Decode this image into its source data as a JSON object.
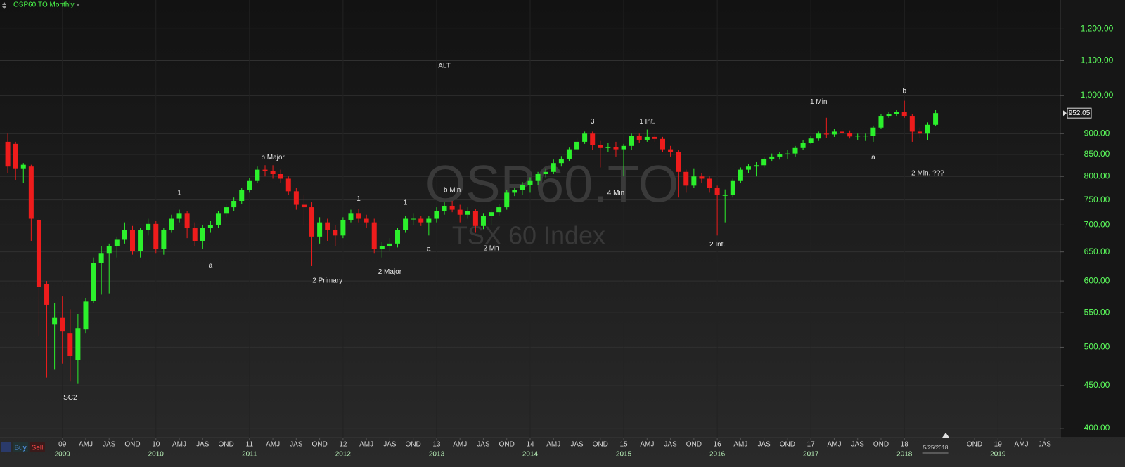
{
  "chart_data": {
    "type": "candlestick",
    "title": "OSP60.TO Monthly",
    "watermark": "OSP60.TO",
    "subtitle": "TSX 60 Index",
    "buttons": [
      "Buy",
      "Sell"
    ],
    "x": [
      "2008-06",
      "2008-07",
      "2008-08",
      "2008-09",
      "2008-10",
      "2008-11",
      "2008-12",
      "2009-01",
      "2009-02",
      "2009-03",
      "2009-04",
      "2009-05",
      "2009-06",
      "2009-07",
      "2009-08",
      "2009-09",
      "2009-10",
      "2009-11",
      "2009-12",
      "2010-01",
      "2010-02",
      "2010-03",
      "2010-04",
      "2010-05",
      "2010-06",
      "2010-07",
      "2010-08",
      "2010-09",
      "2010-10",
      "2010-11",
      "2010-12",
      "2011-01",
      "2011-02",
      "2011-03",
      "2011-04",
      "2011-05",
      "2011-06",
      "2011-07",
      "2011-08",
      "2011-09",
      "2011-10",
      "2011-11",
      "2011-12",
      "2012-01",
      "2012-02",
      "2012-03",
      "2012-04",
      "2012-05",
      "2012-06",
      "2012-07",
      "2012-08",
      "2012-09",
      "2012-10",
      "2012-11",
      "2012-12",
      "2013-01",
      "2013-02",
      "2013-03",
      "2013-04",
      "2013-05",
      "2013-06",
      "2013-07",
      "2013-08",
      "2013-09",
      "2013-10",
      "2013-11",
      "2013-12",
      "2014-01",
      "2014-02",
      "2014-03",
      "2014-04",
      "2014-05",
      "2014-06",
      "2014-07",
      "2014-08",
      "2014-09",
      "2014-10",
      "2014-11",
      "2014-12",
      "2015-01",
      "2015-02",
      "2015-03",
      "2015-04",
      "2015-05",
      "2015-06",
      "2015-07",
      "2015-08",
      "2015-09",
      "2015-10",
      "2015-11",
      "2015-12",
      "2016-01",
      "2016-02",
      "2016-03",
      "2016-04",
      "2016-05",
      "2016-06",
      "2016-07",
      "2016-08",
      "2016-09",
      "2016-10",
      "2016-11",
      "2016-12",
      "2017-01",
      "2017-02",
      "2017-03",
      "2017-04",
      "2017-05",
      "2017-06",
      "2017-07",
      "2017-08",
      "2017-09",
      "2017-10",
      "2017-11",
      "2017-12",
      "2018-01",
      "2018-02",
      "2018-03",
      "2018-04",
      "2018-05"
    ],
    "open": [
      880,
      875,
      818,
      822,
      710,
      595,
      532,
      542,
      520,
      483,
      525,
      568,
      630,
      648,
      660,
      672,
      690,
      652,
      690,
      702,
      655,
      690,
      712,
      722,
      695,
      670,
      695,
      700,
      722,
      735,
      748,
      770,
      790,
      815,
      812,
      805,
      795,
      768,
      740,
      735,
      678,
      705,
      690,
      680,
      710,
      722,
      712,
      705,
      655,
      660,
      665,
      690,
      712,
      712,
      705,
      712,
      728,
      738,
      730,
      720,
      728,
      698,
      718,
      725,
      735,
      765,
      770,
      782,
      790,
      805,
      810,
      830,
      840,
      862,
      880,
      900,
      872,
      865,
      868,
      862,
      870,
      895,
      885,
      892,
      887,
      862,
      855,
      810,
      780,
      800,
      795,
      775,
      760,
      760,
      790,
      815,
      822,
      825,
      840,
      845,
      850,
      852,
      865,
      878,
      888,
      900,
      898,
      905,
      902,
      893,
      895,
      895,
      915,
      945,
      950,
      955,
      945,
      905,
      900,
      922
    ],
    "high": [
      900,
      880,
      830,
      826,
      712,
      600,
      565,
      575,
      555,
      548,
      572,
      640,
      660,
      665,
      678,
      705,
      698,
      695,
      712,
      708,
      695,
      720,
      730,
      728,
      705,
      700,
      708,
      728,
      742,
      755,
      776,
      796,
      822,
      825,
      825,
      815,
      800,
      775,
      760,
      745,
      715,
      712,
      700,
      715,
      730,
      732,
      720,
      712,
      668,
      675,
      695,
      718,
      722,
      718,
      718,
      735,
      745,
      748,
      740,
      735,
      732,
      722,
      730,
      742,
      770,
      776,
      788,
      798,
      810,
      818,
      838,
      846,
      866,
      888,
      905,
      905,
      882,
      878,
      880,
      875,
      900,
      900,
      910,
      898,
      892,
      870,
      860,
      815,
      818,
      808,
      800,
      780,
      772,
      795,
      820,
      828,
      832,
      845,
      852,
      856,
      860,
      870,
      884,
      894,
      905,
      940,
      912,
      912,
      908,
      900,
      900,
      920,
      950,
      955,
      960,
      985,
      950,
      915,
      928,
      960
    ],
    "low": [
      808,
      792,
      785,
      670,
      515,
      460,
      470,
      478,
      455,
      452,
      520,
      565,
      578,
      580,
      640,
      665,
      645,
      640,
      680,
      648,
      645,
      685,
      705,
      675,
      660,
      655,
      685,
      695,
      715,
      728,
      742,
      765,
      785,
      800,
      795,
      785,
      760,
      730,
      700,
      625,
      665,
      670,
      660,
      675,
      705,
      705,
      695,
      648,
      640,
      652,
      658,
      685,
      700,
      698,
      680,
      705,
      720,
      725,
      705,
      712,
      685,
      692,
      700,
      718,
      730,
      758,
      760,
      765,
      782,
      798,
      805,
      822,
      835,
      855,
      875,
      860,
      820,
      855,
      845,
      800,
      860,
      878,
      880,
      880,
      855,
      845,
      755,
      765,
      775,
      785,
      765,
      680,
      705,
      755,
      785,
      808,
      800,
      820,
      835,
      838,
      840,
      845,
      860,
      875,
      882,
      890,
      892,
      895,
      888,
      885,
      882,
      880,
      912,
      940,
      945,
      940,
      880,
      890,
      885,
      918
    ],
    "close": [
      822,
      818,
      826,
      712,
      590,
      562,
      542,
      522,
      488,
      527,
      567,
      630,
      648,
      660,
      672,
      690,
      652,
      690,
      702,
      655,
      690,
      712,
      722,
      695,
      670,
      695,
      700,
      722,
      735,
      748,
      770,
      790,
      815,
      812,
      805,
      795,
      768,
      740,
      735,
      678,
      705,
      690,
      680,
      710,
      722,
      712,
      705,
      655,
      660,
      665,
      690,
      712,
      712,
      705,
      712,
      728,
      738,
      730,
      720,
      728,
      698,
      718,
      725,
      735,
      765,
      770,
      782,
      790,
      805,
      810,
      830,
      840,
      862,
      880,
      900,
      872,
      865,
      868,
      862,
      870,
      895,
      885,
      892,
      887,
      862,
      855,
      810,
      780,
      800,
      795,
      775,
      760,
      760,
      790,
      815,
      822,
      825,
      840,
      845,
      850,
      852,
      865,
      878,
      888,
      900,
      898,
      905,
      902,
      893,
      895,
      895,
      915,
      945,
      950,
      955,
      945,
      905,
      900,
      922,
      952.05
    ],
    "up_color": "#2cf02c",
    "down_color": "#ee1c1c",
    "log_scale": true,
    "grid": true,
    "ylim": [
      390,
      1300
    ],
    "yticks": [
      {
        "value": 400,
        "label": "400.00"
      },
      {
        "value": 450,
        "label": "450.00"
      },
      {
        "value": 500,
        "label": "500.00"
      },
      {
        "value": 550,
        "label": "550.00"
      },
      {
        "value": 600,
        "label": "600.00"
      },
      {
        "value": 650,
        "label": "650.00"
      },
      {
        "value": 700,
        "label": "700.00"
      },
      {
        "value": 750,
        "label": "750.00"
      },
      {
        "value": 800,
        "label": "800.00"
      },
      {
        "value": 850,
        "label": "850.00"
      },
      {
        "value": 900,
        "label": "900.00"
      },
      {
        "value": 1000,
        "label": "1,000.00"
      },
      {
        "value": 1100,
        "label": "1,100.00"
      },
      {
        "value": 1200,
        "label": "1,200.00"
      }
    ],
    "xlim": [
      "2008-05",
      "2019-09"
    ],
    "xticks": [
      {
        "value": "2009-01",
        "label": "09"
      },
      {
        "value": "2009-04",
        "label": "AMJ"
      },
      {
        "value": "2009-07",
        "label": "JAS"
      },
      {
        "value": "2009-10",
        "label": "OND"
      },
      {
        "value": "2010-01",
        "label": "10"
      },
      {
        "value": "2010-04",
        "label": "AMJ"
      },
      {
        "value": "2010-07",
        "label": "JAS"
      },
      {
        "value": "2010-10",
        "label": "OND"
      },
      {
        "value": "2011-01",
        "label": "11"
      },
      {
        "value": "2011-04",
        "label": "AMJ"
      },
      {
        "value": "2011-07",
        "label": "JAS"
      },
      {
        "value": "2011-10",
        "label": "OND"
      },
      {
        "value": "2012-01",
        "label": "12"
      },
      {
        "value": "2012-04",
        "label": "AMJ"
      },
      {
        "value": "2012-07",
        "label": "JAS"
      },
      {
        "value": "2012-10",
        "label": "OND"
      },
      {
        "value": "2013-01",
        "label": "13"
      },
      {
        "value": "2013-04",
        "label": "AMJ"
      },
      {
        "value": "2013-07",
        "label": "JAS"
      },
      {
        "value": "2013-10",
        "label": "OND"
      },
      {
        "value": "2014-01",
        "label": "14"
      },
      {
        "value": "2014-04",
        "label": "AMJ"
      },
      {
        "value": "2014-07",
        "label": "JAS"
      },
      {
        "value": "2014-10",
        "label": "OND"
      },
      {
        "value": "2015-01",
        "label": "15"
      },
      {
        "value": "2015-04",
        "label": "AMJ"
      },
      {
        "value": "2015-07",
        "label": "JAS"
      },
      {
        "value": "2015-10",
        "label": "OND"
      },
      {
        "value": "2016-01",
        "label": "16"
      },
      {
        "value": "2016-04",
        "label": "AMJ"
      },
      {
        "value": "2016-07",
        "label": "JAS"
      },
      {
        "value": "2016-10",
        "label": "OND"
      },
      {
        "value": "2017-01",
        "label": "17"
      },
      {
        "value": "2017-04",
        "label": "AMJ"
      },
      {
        "value": "2017-07",
        "label": "JAS"
      },
      {
        "value": "2017-10",
        "label": "OND"
      },
      {
        "value": "2018-01",
        "label": "18"
      },
      {
        "value": "2018-10",
        "label": "OND"
      },
      {
        "value": "2019-01",
        "label": "19"
      },
      {
        "value": "2019-04",
        "label": "AMJ"
      },
      {
        "value": "2019-07",
        "label": "JAS"
      }
    ],
    "year_labels": [
      {
        "value": "2009-01",
        "label": "2009"
      },
      {
        "value": "2010-01",
        "label": "2010"
      },
      {
        "value": "2011-01",
        "label": "2011"
      },
      {
        "value": "2012-01",
        "label": "2012"
      },
      {
        "value": "2013-01",
        "label": "2013"
      },
      {
        "value": "2014-01",
        "label": "2014"
      },
      {
        "value": "2015-01",
        "label": "2015"
      },
      {
        "value": "2016-01",
        "label": "2016"
      },
      {
        "value": "2017-01",
        "label": "2017"
      },
      {
        "value": "2018-01",
        "label": "2018"
      },
      {
        "value": "2019-01",
        "label": "2019"
      }
    ],
    "current_date": {
      "value": "2018-05",
      "label": "5/25/2018"
    },
    "annotations": [
      {
        "text": "SC2",
        "x": "2009-02",
        "y": 435
      },
      {
        "text": "1",
        "x": "2010-04",
        "y": 764
      },
      {
        "text": "a",
        "x": "2010-08",
        "y": 626
      },
      {
        "text": "b Major",
        "x": "2011-04",
        "y": 843
      },
      {
        "text": "2 Primary",
        "x": "2011-11",
        "y": 600
      },
      {
        "text": "1",
        "x": "2012-03",
        "y": 752
      },
      {
        "text": "2 Major",
        "x": "2012-07",
        "y": 615
      },
      {
        "text": "1",
        "x": "2012-09",
        "y": 744
      },
      {
        "text": "a",
        "x": "2012-12",
        "y": 655
      },
      {
        "text": "ALT",
        "x": "2013-02",
        "y": 1084
      },
      {
        "text": "b Min",
        "x": "2013-03",
        "y": 770
      },
      {
        "text": "2 Mn",
        "x": "2013-08",
        "y": 656
      },
      {
        "text": "3",
        "x": "2014-09",
        "y": 930
      },
      {
        "text": "4 Min",
        "x": "2014-12",
        "y": 764
      },
      {
        "text": "1 Int.",
        "x": "2015-04",
        "y": 930
      },
      {
        "text": "2 Int.",
        "x": "2016-01",
        "y": 663
      },
      {
        "text": "1 Min",
        "x": "2017-02",
        "y": 982
      },
      {
        "text": "a",
        "x": "2017-09",
        "y": 843
      },
      {
        "text": "b",
        "x": "2018-01",
        "y": 1011
      },
      {
        "text": "2 Min. ???",
        "x": "2018-04",
        "y": 807
      }
    ]
  }
}
